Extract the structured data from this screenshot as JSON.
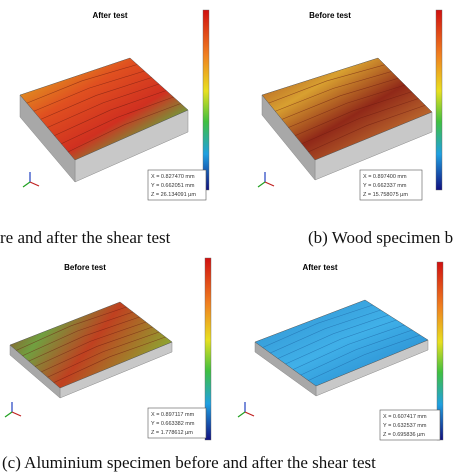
{
  "panels": [
    {
      "title": "After test",
      "info": [
        "X = 0.827470 mm",
        "Y = 0.662051 mm",
        "Z = 26.134091 µm"
      ]
    },
    {
      "title": "Before test",
      "info": [
        "X = 0.897400 mm",
        "Y = 0.662337 mm",
        "Z = 15.758075 µm"
      ]
    },
    {
      "title": "Before test",
      "info": [
        "X = 0.897117 mm",
        "Y = 0.663382 mm",
        "Z = 1.778612 µm"
      ]
    },
    {
      "title": "After test",
      "info": [
        "X = 0.607417 mm",
        "Y = 0.632537 mm",
        "Z = 0.695836 µm"
      ]
    }
  ],
  "captions": [
    "re and after the shear test",
    "(b) Wood specimen b",
    "(c) Aluminium specimen before and after the shear test"
  ]
}
